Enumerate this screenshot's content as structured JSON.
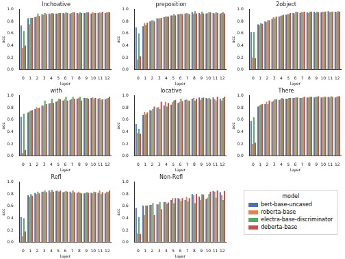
{
  "chart_data": [
    {
      "type": "bar",
      "title": "Inchoative",
      "x_label": "layer",
      "y_label": "acc",
      "legend_title": "model",
      "categories": [
        "0",
        "1",
        "2",
        "3",
        "4",
        "5",
        "6",
        "7",
        "8",
        "9",
        "10",
        "11",
        "12"
      ],
      "ylim": [
        0,
        1.0
      ],
      "yticks": [
        {
          "value": 0,
          "label": "0.0"
        },
        {
          "value": 0.2,
          "label": "0.2"
        },
        {
          "value": 0.4,
          "label": "0.4"
        },
        {
          "value": 0.6,
          "label": "0.6"
        },
        {
          "value": 0.8,
          "label": "0.8"
        },
        {
          "value": 1.0,
          "label": "1.0"
        }
      ],
      "series": [
        {
          "name": "bert-base-uncased",
          "color": "#4c72b0",
          "values": [
            0.73,
            0.85,
            0.87,
            0.92,
            0.93,
            0.93,
            0.94,
            0.93,
            0.94,
            0.94,
            0.93,
            0.94,
            0.94
          ]
        },
        {
          "name": "roberta-base",
          "color": "#dd8452",
          "values": [
            0.36,
            0.75,
            0.88,
            0.91,
            0.92,
            0.93,
            0.93,
            0.94,
            0.93,
            0.94,
            0.95,
            0.95,
            0.95
          ]
        },
        {
          "name": "electra-base-discriminator",
          "color": "#55a868",
          "values": [
            0.64,
            0.86,
            0.93,
            0.94,
            0.94,
            0.94,
            0.95,
            0.95,
            0.95,
            0.95,
            0.94,
            0.94,
            0.95
          ]
        },
        {
          "name": "deberta-base",
          "color": "#c44e52",
          "values": [
            0.4,
            0.86,
            0.89,
            0.92,
            0.93,
            0.94,
            0.94,
            0.95,
            0.94,
            0.95,
            0.94,
            0.96,
            0.95
          ]
        }
      ]
    },
    {
      "type": "bar",
      "title": "preposition",
      "x_label": "layer",
      "y_label": "acc",
      "categories": [
        "0",
        "1",
        "2",
        "3",
        "4",
        "5",
        "6",
        "7",
        "8",
        "9",
        "10",
        "11",
        "12"
      ],
      "ylim": [
        0,
        1.0
      ],
      "yticks": [
        {
          "value": 0,
          "label": "0.0"
        },
        {
          "value": 0.2,
          "label": "0.2"
        },
        {
          "value": 0.4,
          "label": "0.4"
        },
        {
          "value": 0.6,
          "label": "0.6"
        },
        {
          "value": 0.8,
          "label": "0.8"
        },
        {
          "value": 1.0,
          "label": "1.0"
        }
      ],
      "series": [
        {
          "name": "bert-base-uncased",
          "color": "#4c72b0",
          "values": [
            0.7,
            0.72,
            0.8,
            0.85,
            0.87,
            0.9,
            0.92,
            0.93,
            0.95,
            0.94,
            0.93,
            0.94,
            0.93
          ]
        },
        {
          "name": "roberta-base",
          "color": "#dd8452",
          "values": [
            0.17,
            0.77,
            0.82,
            0.85,
            0.88,
            0.9,
            0.92,
            0.94,
            0.93,
            0.92,
            0.94,
            0.93,
            0.94
          ]
        },
        {
          "name": "electra-base-discriminator",
          "color": "#55a868",
          "values": [
            0.6,
            0.74,
            0.82,
            0.85,
            0.88,
            0.92,
            0.93,
            0.93,
            0.97,
            0.96,
            0.95,
            0.95,
            0.95
          ]
        },
        {
          "name": "deberta-base",
          "color": "#c44e52",
          "values": [
            0.22,
            0.78,
            0.8,
            0.86,
            0.88,
            0.9,
            0.92,
            0.92,
            0.93,
            0.93,
            0.95,
            0.94,
            0.93
          ]
        }
      ]
    },
    {
      "type": "bar",
      "title": "2object",
      "x_label": "layer",
      "y_label": "acc",
      "categories": [
        "0",
        "1",
        "2",
        "3",
        "4",
        "5",
        "6",
        "7",
        "8",
        "9",
        "10",
        "11",
        "12"
      ],
      "ylim": [
        0,
        1.0
      ],
      "yticks": [
        {
          "value": 0,
          "label": "0.0"
        },
        {
          "value": 0.2,
          "label": "0.2"
        },
        {
          "value": 0.4,
          "label": "0.4"
        },
        {
          "value": 0.6,
          "label": "0.6"
        },
        {
          "value": 0.8,
          "label": "0.8"
        },
        {
          "value": 1.0,
          "label": "1.0"
        }
      ],
      "series": [
        {
          "name": "bert-base-uncased",
          "color": "#4c72b0",
          "values": [
            0.62,
            0.75,
            0.8,
            0.84,
            0.88,
            0.91,
            0.94,
            0.94,
            0.95,
            0.96,
            0.95,
            0.97,
            0.96
          ]
        },
        {
          "name": "roberta-base",
          "color": "#dd8452",
          "values": [
            0.2,
            0.74,
            0.79,
            0.87,
            0.89,
            0.92,
            0.93,
            0.96,
            0.94,
            0.94,
            0.96,
            0.95,
            0.95
          ]
        },
        {
          "name": "electra-base-discriminator",
          "color": "#55a868",
          "values": [
            0.62,
            0.77,
            0.82,
            0.85,
            0.9,
            0.92,
            0.96,
            0.95,
            0.96,
            0.96,
            0.96,
            0.96,
            0.97
          ]
        },
        {
          "name": "deberta-base",
          "color": "#c44e52",
          "values": [
            0.19,
            0.76,
            0.82,
            0.88,
            0.91,
            0.94,
            0.95,
            0.96,
            0.96,
            0.95,
            0.96,
            0.96,
            0.96
          ]
        }
      ]
    },
    {
      "type": "bar",
      "title": "with",
      "x_label": "layer",
      "y_label": "acc",
      "categories": [
        "0",
        "1",
        "2",
        "3",
        "4",
        "5",
        "6",
        "7",
        "8",
        "9",
        "10",
        "11",
        "12"
      ],
      "ylim": [
        0,
        1.0
      ],
      "yticks": [
        {
          "value": 0,
          "label": "0.0"
        },
        {
          "value": 0.2,
          "label": "0.2"
        },
        {
          "value": 0.4,
          "label": "0.4"
        },
        {
          "value": 0.6,
          "label": "0.6"
        },
        {
          "value": 0.8,
          "label": "0.8"
        },
        {
          "value": 1.0,
          "label": "1.0"
        }
      ],
      "series": [
        {
          "name": "bert-base-uncased",
          "color": "#4c72b0",
          "values": [
            0.65,
            0.72,
            0.78,
            0.84,
            0.87,
            0.9,
            0.92,
            0.93,
            0.95,
            0.96,
            0.96,
            0.95,
            0.94
          ]
        },
        {
          "name": "roberta-base",
          "color": "#dd8452",
          "values": [
            0.05,
            0.74,
            0.81,
            0.83,
            0.88,
            0.92,
            0.94,
            0.95,
            0.96,
            0.96,
            0.97,
            0.96,
            0.95
          ]
        },
        {
          "name": "electra-base-discriminator",
          "color": "#55a868",
          "values": [
            0.7,
            0.75,
            0.79,
            0.92,
            0.95,
            0.95,
            0.98,
            0.98,
            0.98,
            0.96,
            0.95,
            0.93,
            0.96
          ]
        },
        {
          "name": "deberta-base",
          "color": "#c44e52",
          "values": [
            0.1,
            0.76,
            0.8,
            0.86,
            0.88,
            0.94,
            0.92,
            0.95,
            0.92,
            0.95,
            0.96,
            0.94,
            0.98
          ]
        }
      ]
    },
    {
      "type": "bar",
      "title": "locative",
      "x_label": "layer",
      "y_label": "acc",
      "categories": [
        "0",
        "1",
        "2",
        "3",
        "4",
        "5",
        "6",
        "7",
        "8",
        "9",
        "10",
        "11",
        "12"
      ],
      "ylim": [
        0,
        1.0
      ],
      "yticks": [
        {
          "value": 0,
          "label": "0.0"
        },
        {
          "value": 0.2,
          "label": "0.2"
        },
        {
          "value": 0.4,
          "label": "0.4"
        },
        {
          "value": 0.6,
          "label": "0.6"
        },
        {
          "value": 0.8,
          "label": "0.8"
        },
        {
          "value": 1.0,
          "label": "1.0"
        }
      ],
      "series": [
        {
          "name": "bert-base-uncased",
          "color": "#4c72b0",
          "values": [
            0.53,
            0.68,
            0.76,
            0.8,
            0.84,
            0.85,
            0.88,
            0.93,
            0.95,
            0.97,
            0.96,
            0.97,
            0.95
          ]
        },
        {
          "name": "roberta-base",
          "color": "#dd8452",
          "values": [
            0.38,
            0.73,
            0.75,
            0.81,
            0.9,
            0.89,
            0.9,
            0.94,
            0.96,
            0.93,
            0.95,
            0.94,
            0.92
          ]
        },
        {
          "name": "electra-base-discriminator",
          "color": "#55a868",
          "values": [
            0.45,
            0.69,
            0.78,
            0.78,
            0.82,
            0.92,
            0.95,
            0.92,
            0.92,
            0.96,
            0.96,
            0.92,
            0.96
          ]
        },
        {
          "name": "deberta-base",
          "color": "#c44e52",
          "values": [
            0.37,
            0.72,
            0.82,
            0.9,
            0.88,
            0.93,
            0.91,
            0.92,
            0.95,
            0.97,
            0.94,
            0.98,
            0.98
          ]
        }
      ]
    },
    {
      "type": "bar",
      "title": "There",
      "x_label": "layer",
      "y_label": "acc",
      "categories": [
        "0",
        "1",
        "2",
        "3",
        "4",
        "5",
        "6",
        "7",
        "8",
        "9",
        "10",
        "11",
        "12"
      ],
      "ylim": [
        0,
        1.0
      ],
      "yticks": [
        {
          "value": 0,
          "label": "0.0"
        },
        {
          "value": 0.2,
          "label": "0.2"
        },
        {
          "value": 0.4,
          "label": "0.4"
        },
        {
          "value": 0.6,
          "label": "0.6"
        },
        {
          "value": 0.8,
          "label": "0.8"
        },
        {
          "value": 1.0,
          "label": "1.0"
        }
      ],
      "series": [
        {
          "name": "bert-base-uncased",
          "color": "#4c72b0",
          "values": [
            0.58,
            0.82,
            0.86,
            0.9,
            0.93,
            0.95,
            0.96,
            0.96,
            0.97,
            0.97,
            0.97,
            0.98,
            0.97
          ]
        },
        {
          "name": "roberta-base",
          "color": "#dd8452",
          "values": [
            0.2,
            0.84,
            0.9,
            0.92,
            0.94,
            0.95,
            0.96,
            0.96,
            0.97,
            0.98,
            0.97,
            0.97,
            0.98
          ]
        },
        {
          "name": "electra-base-discriminator",
          "color": "#55a868",
          "values": [
            0.64,
            0.85,
            0.86,
            0.94,
            0.96,
            0.96,
            0.97,
            0.97,
            0.98,
            0.98,
            0.98,
            0.99,
            0.99
          ]
        },
        {
          "name": "deberta-base",
          "color": "#c44e52",
          "values": [
            0.22,
            0.86,
            0.92,
            0.94,
            0.95,
            0.96,
            0.97,
            0.98,
            0.98,
            0.99,
            0.98,
            0.98,
            0.99
          ]
        }
      ]
    },
    {
      "type": "bar",
      "title": "Refl",
      "x_label": "layer",
      "y_label": "acc",
      "categories": [
        "0",
        "1",
        "2",
        "3",
        "4",
        "5",
        "6",
        "7",
        "8",
        "9",
        "10",
        "11",
        "12"
      ],
      "ylim": [
        0,
        1.0
      ],
      "yticks": [
        {
          "value": 0,
          "label": "0.0"
        },
        {
          "value": 0.2,
          "label": "0.2"
        },
        {
          "value": 0.4,
          "label": "0.4"
        },
        {
          "value": 0.6,
          "label": "0.6"
        },
        {
          "value": 0.8,
          "label": "0.8"
        },
        {
          "value": 1.0,
          "label": "1.0"
        }
      ],
      "series": [
        {
          "name": "bert-base-uncased",
          "color": "#4c72b0",
          "values": [
            0.42,
            0.78,
            0.82,
            0.84,
            0.86,
            0.85,
            0.83,
            0.84,
            0.82,
            0.81,
            0.82,
            0.82,
            0.81
          ]
        },
        {
          "name": "roberta-base",
          "color": "#dd8452",
          "values": [
            0.1,
            0.75,
            0.8,
            0.84,
            0.83,
            0.86,
            0.84,
            0.82,
            0.84,
            0.82,
            0.81,
            0.86,
            0.84
          ]
        },
        {
          "name": "electra-base-discriminator",
          "color": "#55a868",
          "values": [
            0.4,
            0.8,
            0.84,
            0.86,
            0.87,
            0.84,
            0.85,
            0.86,
            0.82,
            0.83,
            0.84,
            0.8,
            0.83
          ]
        },
        {
          "name": "deberta-base",
          "color": "#c44e52",
          "values": [
            0.18,
            0.77,
            0.81,
            0.83,
            0.84,
            0.86,
            0.84,
            0.83,
            0.81,
            0.82,
            0.83,
            0.83,
            0.86
          ]
        }
      ]
    },
    {
      "type": "bar",
      "title": "Non-Refl",
      "x_label": "layer",
      "y_label": "acc",
      "categories": [
        "0",
        "1",
        "2",
        "3",
        "4",
        "5",
        "6",
        "7",
        "8",
        "9",
        "10",
        "11",
        "12"
      ],
      "ylim": [
        0,
        1.0
      ],
      "yticks": [
        {
          "value": 0,
          "label": "0.0"
        },
        {
          "value": 0.2,
          "label": "0.2"
        },
        {
          "value": 0.4,
          "label": "0.4"
        },
        {
          "value": 0.6,
          "label": "0.6"
        },
        {
          "value": 0.8,
          "label": "0.8"
        },
        {
          "value": 1.0,
          "label": "1.0"
        }
      ],
      "series": [
        {
          "name": "bert-base-uncased",
          "color": "#4c72b0",
          "values": [
            0.57,
            0.61,
            0.62,
            0.63,
            0.67,
            0.7,
            0.73,
            0.7,
            0.8,
            0.76,
            0.72,
            0.85,
            0.83
          ]
        },
        {
          "name": "roberta-base",
          "color": "#dd8452",
          "values": [
            0.15,
            0.45,
            0.62,
            0.63,
            0.67,
            0.73,
            0.72,
            0.75,
            0.78,
            0.7,
            0.74,
            0.84,
            0.78
          ]
        },
        {
          "name": "electra-base-discriminator",
          "color": "#55a868",
          "values": [
            0.42,
            0.61,
            0.65,
            0.67,
            0.64,
            0.65,
            0.68,
            0.68,
            0.65,
            0.8,
            0.8,
            0.74,
            0.7
          ]
        },
        {
          "name": "deberta-base",
          "color": "#c44e52",
          "values": [
            0.14,
            0.61,
            0.45,
            0.55,
            0.66,
            0.73,
            0.73,
            0.73,
            0.8,
            0.79,
            0.84,
            0.86,
            0.85
          ]
        }
      ]
    }
  ]
}
